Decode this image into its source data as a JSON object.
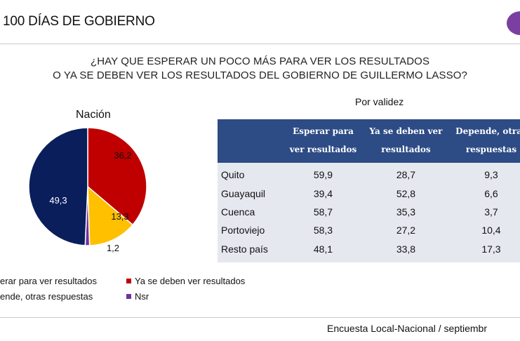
{
  "header": {
    "title": "100 DÍAS DE GOBIERNO",
    "brand_color": "#7a3fa0"
  },
  "question": {
    "line1": "¿HAY QUE ESPERAR UN POCO MÁS PARA VER LOS RESULTADOS",
    "line2": "O YA SE DEBEN VER LOS RESULTADOS DEL GOBIERNO DE GUILLERMO LASSO?"
  },
  "table_title": "Por validez",
  "footer": {
    "source": "Encuesta Local-Nacional / septiembr"
  },
  "chart_data": [
    {
      "type": "pie",
      "title": "Nación",
      "slices": [
        {
          "label": "Esperar para ver resultados",
          "value": 49.3,
          "display": "49,3",
          "color": "#0a1e5c"
        },
        {
          "label": "Ya se deben ver resultados",
          "value": 36.2,
          "display": "36,2",
          "color": "#c00000"
        },
        {
          "label": "Depende, otras respuestas",
          "value": 13.3,
          "display": "13,3",
          "color": "#ffc000"
        },
        {
          "label": "Nsr",
          "value": 1.2,
          "display": "1,2",
          "color": "#7030a0"
        }
      ],
      "legend": {
        "placement": "bottom",
        "items": [
          {
            "label": "erar para ver resultados",
            "color": "#0a1e5c"
          },
          {
            "label": "Ya se deben ver resultados",
            "color": "#c00000"
          },
          {
            "label": "ende, otras respuestas",
            "color": "#ffc000"
          },
          {
            "label": "Nsr",
            "color": "#7030a0"
          }
        ]
      }
    },
    {
      "type": "table",
      "title": "Por validez",
      "header_color": "#2d4b85",
      "columns": [
        "Esperar para ver resultados",
        "Ya se deben ver resultados",
        "Depende, otras respuestas"
      ],
      "header_lines": [
        [
          "Esperar para",
          "ver resultados"
        ],
        [
          "Ya se deben ver",
          "resultados"
        ],
        [
          "Depende, otras",
          "respuestas"
        ]
      ],
      "rows": [
        {
          "label": "Quito",
          "values": [
            "59,9",
            "28,7",
            "9,3"
          ]
        },
        {
          "label": "Guayaquil",
          "values": [
            "39,4",
            "52,8",
            "6,6"
          ]
        },
        {
          "label": "Cuenca",
          "values": [
            "58,7",
            "35,3",
            "3,7"
          ]
        },
        {
          "label": "Portoviejo",
          "values": [
            "58,3",
            "27,2",
            "10,4"
          ]
        },
        {
          "label": "Resto país",
          "values": [
            "48,1",
            "33,8",
            "17,3"
          ]
        }
      ]
    }
  ]
}
